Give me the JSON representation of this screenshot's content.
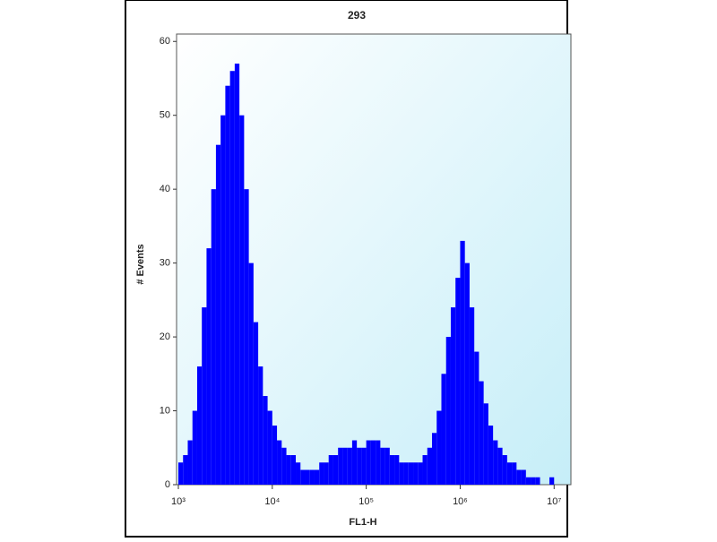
{
  "chart_data": {
    "type": "histogram",
    "title": "293",
    "x_label": "FL1-H",
    "y_label": "# Events",
    "xscale": "log",
    "color": "#0000ff",
    "bins": [
      1000,
      1122,
      1259,
      1413,
      1585,
      1778,
      1995,
      2239,
      2512,
      2818,
      3162,
      3548,
      3981,
      4467,
      5012,
      5623,
      6310,
      7079,
      7943,
      8913,
      10000,
      11220,
      12590,
      14130,
      15850,
      17780,
      19950,
      22390,
      25120,
      28180,
      31620,
      35480,
      39810,
      44670,
      50120,
      56230,
      63100,
      70790,
      79430,
      89130,
      100000,
      112200,
      125900,
      141300,
      158500,
      177800,
      199500,
      223900,
      251200,
      281800,
      316200,
      354800,
      398100,
      446700,
      501200,
      562300,
      631000,
      707900,
      794300,
      891300,
      1000000,
      1122000,
      1259000,
      1413000,
      1585000,
      1778000,
      1995000,
      2239000,
      2512000,
      2818000,
      3162000,
      3548000,
      3981000,
      4467000,
      5012000,
      5623000,
      6310000,
      7079000,
      7943000,
      8913000,
      10000000,
      11220000,
      12590000,
      14130000
    ],
    "values": [
      3,
      4,
      6,
      10,
      16,
      24,
      32,
      40,
      46,
      50,
      54,
      56,
      57,
      50,
      40,
      30,
      22,
      16,
      12,
      10,
      8,
      6,
      5,
      4,
      4,
      3,
      2,
      2,
      2,
      2,
      3,
      3,
      4,
      4,
      5,
      5,
      5,
      6,
      5,
      5,
      6,
      6,
      6,
      5,
      5,
      4,
      4,
      3,
      3,
      3,
      3,
      3,
      4,
      5,
      7,
      10,
      15,
      20,
      24,
      28,
      33,
      30,
      24,
      18,
      14,
      11,
      8,
      6,
      5,
      4,
      3,
      3,
      2,
      2,
      1,
      1,
      1,
      0,
      0,
      1,
      0,
      0,
      0
    ],
    "xlim": [
      1000,
      14130000
    ],
    "ylim": [
      0,
      61
    ],
    "xticks": [
      {
        "value": 1000,
        "label": "10³"
      },
      {
        "value": 10000,
        "label": "10⁴"
      },
      {
        "value": 100000,
        "label": "10⁵"
      },
      {
        "value": 1000000,
        "label": "10⁶"
      },
      {
        "value": 10000000,
        "label": "10⁷"
      }
    ],
    "yticks": [
      0,
      10,
      20,
      30,
      40,
      50,
      60
    ]
  }
}
